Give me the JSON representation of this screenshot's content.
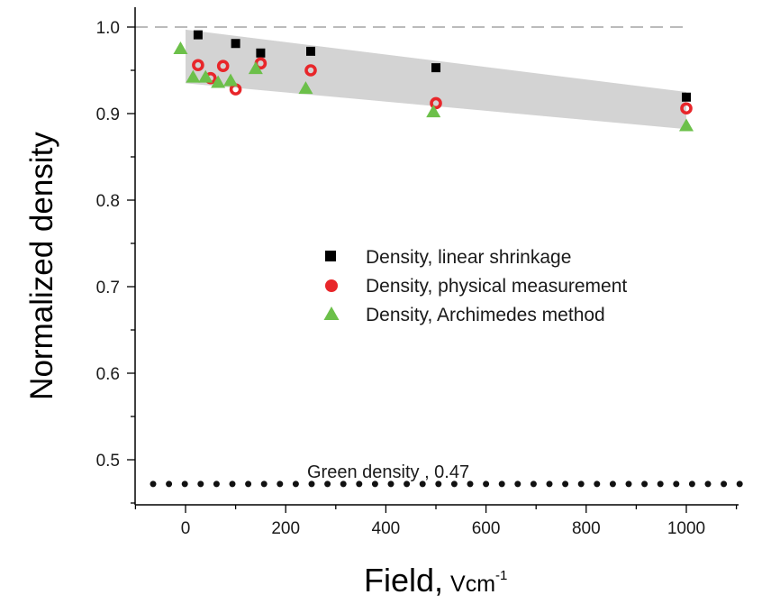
{
  "chart_data": {
    "type": "scatter",
    "xlabel": "Field,",
    "xlabel_units": "Vcm",
    "xlabel_superscript": "-1",
    "ylabel": "Normalized density",
    "xlim": [
      -100,
      1100
    ],
    "ylim": [
      0.44,
      1.03
    ],
    "xticks": [
      0,
      200,
      400,
      600,
      800,
      1000
    ],
    "xtick_labels": [
      "0",
      "200",
      "400",
      "600",
      "800",
      "1000"
    ],
    "yticks": [
      0.5,
      0.6,
      0.7,
      0.8,
      0.9,
      1.0
    ],
    "ytick_labels": [
      "0.5",
      "0.6",
      "0.7",
      "0.8",
      "0.9",
      "1.0"
    ],
    "grid": false,
    "legend_position": "center-right",
    "reference_lines": [
      {
        "name": "full-density",
        "y": 1.0,
        "style": "dashed"
      },
      {
        "name": "green-density",
        "y": 0.472,
        "style": "dotted"
      }
    ],
    "annotation": "Green density , 0.47",
    "band": {
      "x": [
        0,
        1000
      ],
      "upper": [
        0.997,
        0.925
      ],
      "lower": [
        0.935,
        0.882
      ],
      "color": "#d3d3d3"
    },
    "series": [
      {
        "name": "Density, linear shrinkage",
        "marker": "square",
        "color": "#000000",
        "points": [
          {
            "x": 25,
            "y": 0.991
          },
          {
            "x": 100,
            "y": 0.981
          },
          {
            "x": 150,
            "y": 0.97
          },
          {
            "x": 250,
            "y": 0.972
          },
          {
            "x": 500,
            "y": 0.953
          },
          {
            "x": 1000,
            "y": 0.919
          }
        ]
      },
      {
        "name": "Density, physical measurement",
        "marker": "circle",
        "color": "#e8262a",
        "points": [
          {
            "x": 25,
            "y": 0.956
          },
          {
            "x": 50,
            "y": 0.941
          },
          {
            "x": 75,
            "y": 0.955
          },
          {
            "x": 100,
            "y": 0.928
          },
          {
            "x": 150,
            "y": 0.958
          },
          {
            "x": 250,
            "y": 0.95
          },
          {
            "x": 500,
            "y": 0.912
          },
          {
            "x": 1000,
            "y": 0.906
          }
        ]
      },
      {
        "name": "Density, Archimedes method",
        "marker": "triangle",
        "color": "#6cc04a",
        "points": [
          {
            "x": -10,
            "y": 0.975
          },
          {
            "x": 15,
            "y": 0.942
          },
          {
            "x": 40,
            "y": 0.942
          },
          {
            "x": 65,
            "y": 0.936
          },
          {
            "x": 90,
            "y": 0.938
          },
          {
            "x": 140,
            "y": 0.952
          },
          {
            "x": 240,
            "y": 0.929
          },
          {
            "x": 495,
            "y": 0.902
          },
          {
            "x": 1000,
            "y": 0.886
          }
        ]
      }
    ]
  }
}
